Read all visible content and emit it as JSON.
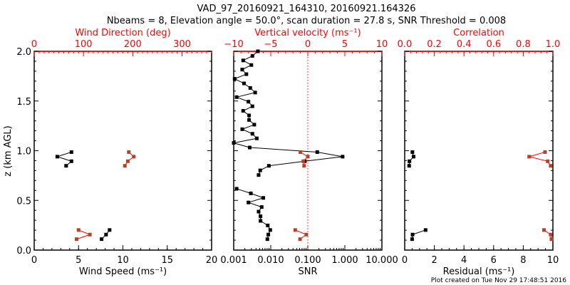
{
  "chart_data": [
    {
      "type": "scatter",
      "title": "VAD_97_20160921_164310, 20160921.164326",
      "subtitle": "Nbeams = 8, Elevation angle = 50.0°, scan duration = 27.8 s, SNR Threshold = 0.008",
      "footer": "Plot created on Tue Nov 29 17:48:51 2016",
      "heights_km": [
        2.0,
        1.954,
        1.908,
        1.862,
        1.816,
        1.77,
        1.723,
        1.677,
        1.631,
        1.585,
        1.539,
        1.493,
        1.447,
        1.401,
        1.355,
        1.309,
        1.262,
        1.216,
        1.17,
        1.124,
        1.078,
        1.032,
        0.986,
        0.94,
        0.894,
        0.848,
        0.802,
        0.755,
        0.709,
        0.663,
        0.617,
        0.571,
        0.525,
        0.479,
        0.433,
        0.387,
        0.34,
        0.294,
        0.248,
        0.202,
        0.156,
        0.11
      ],
      "ylabel": "z (km AGL)",
      "ylim": [
        0,
        2
      ],
      "yticks": [
        "0.0",
        "0.5",
        "1.0",
        "1.5",
        "2.0"
      ],
      "panels": [
        {
          "name": "wind",
          "xlabel": "Wind Speed (ms⁻¹)",
          "xlim": [
            0,
            20
          ],
          "xticks": [
            "0",
            "5",
            "10",
            "15",
            "20"
          ],
          "top_label": "Wind Direction (deg)",
          "top_xlim": [
            0,
            360
          ],
          "top_xticks": [
            "0",
            "100",
            "200",
            "300"
          ],
          "series": [
            {
              "name": "Wind Speed",
              "axis": "bottom",
              "color": "#000000",
              "values": [
                null,
                null,
                null,
                null,
                null,
                null,
                null,
                null,
                null,
                null,
                null,
                null,
                null,
                null,
                null,
                null,
                null,
                null,
                null,
                null,
                null,
                null,
                4.2,
                2.6,
                4.2,
                3.6,
                null,
                null,
                null,
                null,
                null,
                null,
                null,
                null,
                null,
                null,
                null,
                null,
                null,
                8.5,
                8.1,
                7.6
              ]
            },
            {
              "name": "Wind Direction",
              "axis": "top",
              "color": "#ff0000",
              "values": [
                null,
                null,
                null,
                null,
                null,
                null,
                null,
                null,
                null,
                null,
                null,
                null,
                null,
                null,
                null,
                null,
                null,
                null,
                null,
                null,
                null,
                null,
                192,
                202,
                190,
                184,
                null,
                null,
                null,
                null,
                null,
                null,
                null,
                null,
                null,
                null,
                null,
                null,
                null,
                90,
                113,
                86
              ]
            }
          ]
        },
        {
          "name": "snr",
          "xlabel": "SNR",
          "xlim": [
            0.001,
            10
          ],
          "xscale": "log",
          "xticks": [
            "0.001",
            "0.010",
            "0.100",
            "1.000",
            "10.000"
          ],
          "top_label": "Vertical velocity (ms⁻¹)",
          "top_xlim": [
            -10,
            10
          ],
          "top_xticks": [
            "−10",
            "−5",
            "0",
            "5",
            "10"
          ],
          "series": [
            {
              "name": "SNR",
              "axis": "bottom",
              "color": "#000000",
              "values": [
                0.0045,
                0.0032,
                0.0018,
                0.003,
                0.0017,
                0.0022,
                0.00106,
                0.0019,
                0.0028,
                0.0038,
                0.0012,
                0.0025,
                0.0032,
                0.0018,
                0.0026,
                0.0026,
                0.0036,
                0.0017,
                0.0032,
                0.0042,
                0.001,
                0.0027,
                0.18,
                0.87,
                0.083,
                0.0089,
                0.0052,
                0.0047,
                null,
                null,
                0.0012,
                0.0029,
                0.0063,
                0.0025,
                0.0057,
                0.0047,
                0.0053,
                0.0053,
                0.0083,
                0.0097,
                0.0086,
                0.0081
              ]
            },
            {
              "name": "Vertical velocity",
              "axis": "top",
              "color": "#ff0000",
              "values": [
                null,
                null,
                null,
                null,
                null,
                null,
                null,
                null,
                null,
                null,
                null,
                null,
                null,
                null,
                null,
                null,
                null,
                null,
                null,
                null,
                null,
                null,
                -1.0,
                0.0,
                -0.6,
                -0.5,
                null,
                null,
                null,
                null,
                null,
                null,
                null,
                null,
                null,
                null,
                null,
                null,
                null,
                -1.7,
                -0.2,
                -1.05
              ]
            }
          ]
        },
        {
          "name": "residual",
          "xlabel": "Residual (ms⁻¹)",
          "xlim": [
            0,
            10
          ],
          "xticks": [
            "0",
            "2",
            "4",
            "6",
            "8",
            "10"
          ],
          "top_label": "Correlation",
          "top_xlim": [
            0,
            1
          ],
          "top_xticks": [
            "0.0",
            "0.2",
            "0.4",
            "0.6",
            "0.8",
            "1.0"
          ],
          "series": [
            {
              "name": "Residual",
              "axis": "bottom",
              "color": "#000000",
              "values": [
                null,
                null,
                null,
                null,
                null,
                null,
                null,
                null,
                null,
                null,
                null,
                null,
                null,
                null,
                null,
                null,
                null,
                null,
                null,
                null,
                null,
                null,
                0.52,
                0.6,
                0.32,
                0.3,
                null,
                null,
                null,
                null,
                null,
                null,
                null,
                null,
                null,
                null,
                null,
                null,
                null,
                1.41,
                0.53,
                0.5
              ]
            },
            {
              "name": "Correlation",
              "axis": "top",
              "color": "#ff0000",
              "values": [
                null,
                null,
                null,
                null,
                null,
                null,
                null,
                null,
                null,
                null,
                null,
                null,
                null,
                null,
                null,
                null,
                null,
                null,
                null,
                null,
                null,
                null,
                0.947,
                0.84,
                0.965,
                0.985,
                null,
                null,
                null,
                null,
                null,
                null,
                null,
                null,
                null,
                null,
                null,
                null,
                null,
                0.94,
                0.985,
                0.99
              ]
            }
          ]
        }
      ]
    }
  ]
}
